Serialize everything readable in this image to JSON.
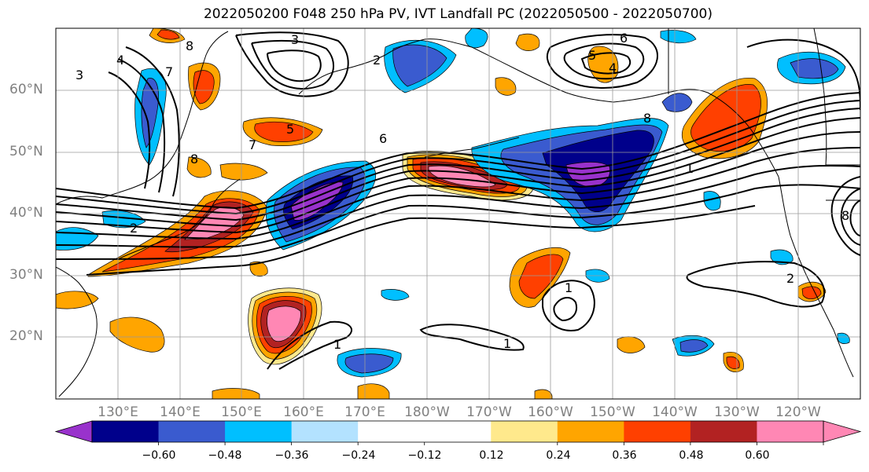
{
  "title": "2022050200 F048 250 hPa PV, IVT Landfall PC (2022050500 - 2022050700)",
  "axes": {
    "lat_labels": [
      "60°N",
      "50°N",
      "40°N",
      "30°N",
      "20°N"
    ],
    "lon_labels": [
      "130°E",
      "140°E",
      "150°E",
      "160°E",
      "170°E",
      "180°W",
      "170°W",
      "160°W",
      "150°W",
      "140°W",
      "130°W",
      "120°W"
    ]
  },
  "colorbar": {
    "colors": [
      "#9932cc",
      "#00008b",
      "#3a5bcf",
      "#00bfff",
      "#b3e2ff",
      "#ffffff",
      "#ffffff",
      "#ffe98c",
      "#ffa500",
      "#ff4000",
      "#b22222",
      "#ff87b4",
      "#ff87b4"
    ],
    "tick_labels": [
      "−0.60",
      "−0.48",
      "−0.36",
      "−0.24",
      "−0.12",
      "0.12",
      "0.24",
      "0.36",
      "0.48",
      "0.60"
    ]
  },
  "contour_labels": [
    "1",
    "1",
    "1",
    "1",
    "2",
    "2",
    "2",
    "3",
    "3",
    "4",
    "4",
    "5",
    "5",
    "6",
    "6",
    "7",
    "7",
    "8",
    "8",
    "8",
    "8"
  ]
}
